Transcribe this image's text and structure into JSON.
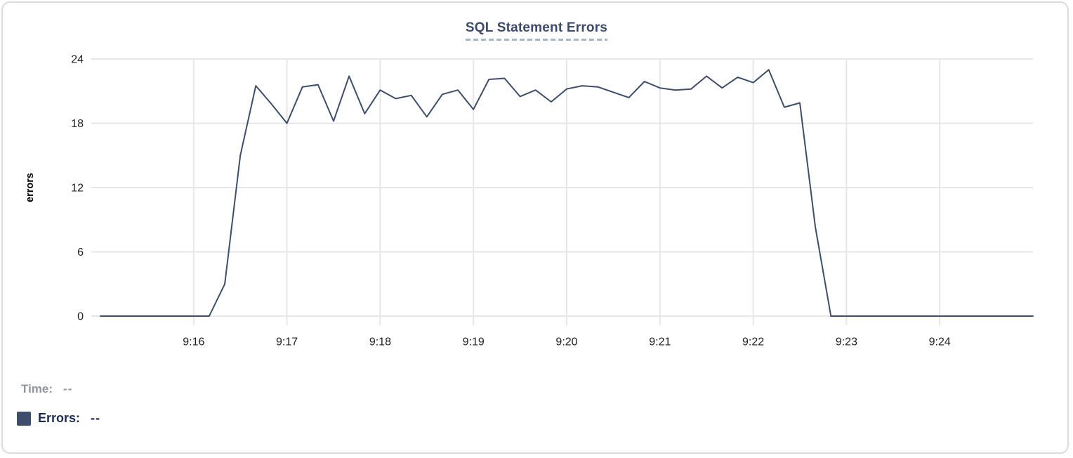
{
  "title": "SQL Statement Errors",
  "tooltip": {
    "time_label": "Time:",
    "time_value": "--",
    "errors_label": "Errors:",
    "errors_value": "--"
  },
  "colors": {
    "line": "#3e4d6b",
    "swatch": "#3e4d6b",
    "title": "#3c4b6d",
    "title_underline": "#aab4c9",
    "grid": "#e7e7e7",
    "tick": "#d9d9d9",
    "axis_text": "#1f1f1f",
    "ylabel_text": "#000000",
    "time_row_text": "#8f969e",
    "errors_row_text": "#1d2c53"
  },
  "chart_data": {
    "type": "line",
    "title": "SQL Statement Errors",
    "xlabel": "",
    "ylabel": "errors",
    "series_name": "Errors",
    "legend_position": "bottom-left",
    "grid": true,
    "ylim": [
      0,
      24
    ],
    "yticks": [
      0,
      6,
      12,
      18,
      24
    ],
    "xticks": [
      "9:16",
      "9:17",
      "9:18",
      "9:19",
      "9:20",
      "9:21",
      "9:22",
      "9:23",
      "9:24"
    ],
    "times": [
      "9:15:00",
      "9:15:10",
      "9:15:20",
      "9:15:30",
      "9:15:40",
      "9:15:50",
      "9:16:00",
      "9:16:10",
      "9:16:20",
      "9:16:30",
      "9:16:40",
      "9:16:50",
      "9:17:00",
      "9:17:10",
      "9:17:20",
      "9:17:30",
      "9:17:40",
      "9:17:50",
      "9:18:00",
      "9:18:10",
      "9:18:20",
      "9:18:30",
      "9:18:40",
      "9:18:50",
      "9:19:00",
      "9:19:10",
      "9:19:20",
      "9:19:30",
      "9:19:40",
      "9:19:50",
      "9:20:00",
      "9:20:10",
      "9:20:20",
      "9:20:30",
      "9:20:40",
      "9:20:50",
      "9:21:00",
      "9:21:10",
      "9:21:20",
      "9:21:30",
      "9:21:40",
      "9:21:50",
      "9:22:00",
      "9:22:10",
      "9:22:20",
      "9:22:30",
      "9:22:40",
      "9:22:50",
      "9:23:00",
      "9:23:10",
      "9:23:20",
      "9:23:30",
      "9:23:40",
      "9:23:50",
      "9:24:00",
      "9:24:10",
      "9:24:20",
      "9:24:30",
      "9:24:40",
      "9:24:50",
      "9:25:00"
    ],
    "values": [
      0,
      0,
      0,
      0,
      0,
      0,
      0,
      0,
      3,
      15,
      21.5,
      19.8,
      18,
      21.4,
      21.6,
      18.2,
      22.4,
      18.9,
      21.1,
      20.3,
      20.6,
      18.6,
      20.7,
      21.1,
      19.3,
      22.1,
      22.2,
      20.5,
      21.1,
      20.0,
      21.2,
      21.5,
      21.4,
      20.9,
      20.4,
      21.9,
      21.3,
      21.1,
      21.2,
      22.4,
      21.3,
      22.3,
      21.8,
      23.0,
      19.5,
      19.9,
      8.3,
      0,
      0,
      0,
      0,
      0,
      0,
      0,
      0,
      0,
      0,
      0,
      0,
      0,
      0
    ]
  }
}
